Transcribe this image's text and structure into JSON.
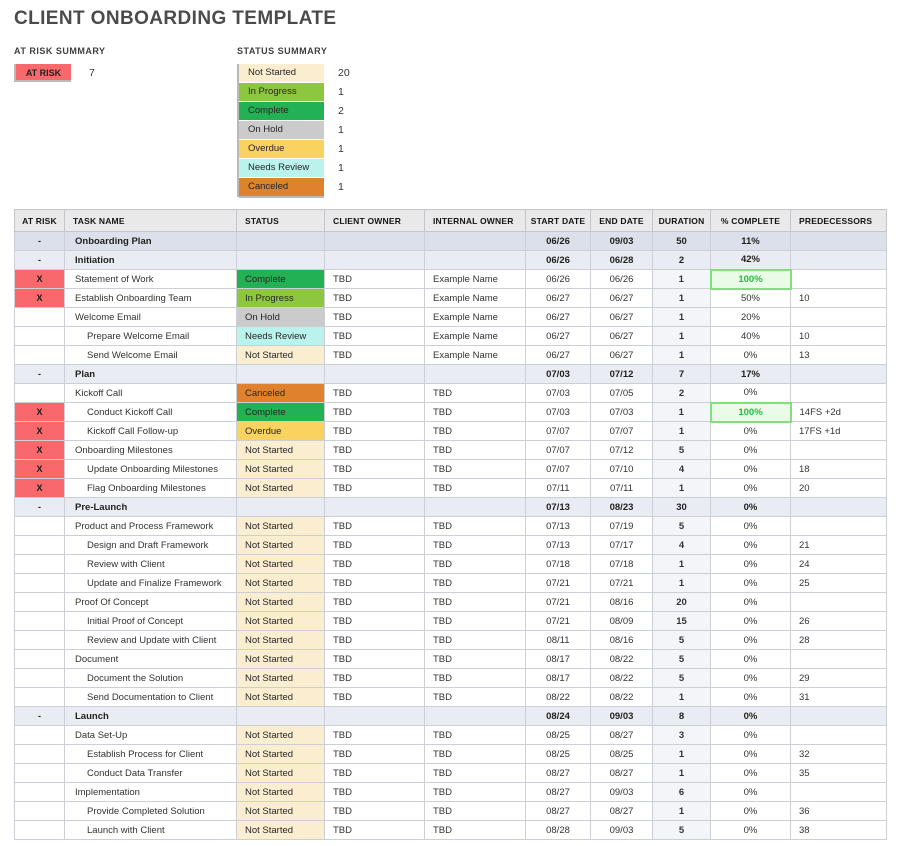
{
  "title": "CLIENT ONBOARDING TEMPLATE",
  "at_risk_summary": {
    "label": "AT RISK SUMMARY",
    "badge": "AT RISK",
    "count": "7",
    "badge_color": "#f9696c"
  },
  "status_summary": {
    "label": "STATUS SUMMARY",
    "items": [
      {
        "label": "Not Started",
        "count": "20",
        "color": "#fbeed0"
      },
      {
        "label": "In Progress",
        "count": "1",
        "color": "#8dc63f"
      },
      {
        "label": "Complete",
        "count": "2",
        "color": "#22b153"
      },
      {
        "label": "On Hold",
        "count": "1",
        "color": "#cbcbcb"
      },
      {
        "label": "Overdue",
        "count": "1",
        "color": "#fad25f"
      },
      {
        "label": "Needs Review",
        "count": "1",
        "color": "#baf3ec"
      },
      {
        "label": "Canceled",
        "count": "1",
        "color": "#e0812d"
      }
    ]
  },
  "status_colors": {
    "Not Started": "#fbeed0",
    "In Progress": "#8dc63f",
    "Complete": "#22b153",
    "On Hold": "#cbcbcb",
    "Overdue": "#fad25f",
    "Needs Review": "#baf3ec",
    "Canceled": "#e0812d"
  },
  "table": {
    "columns": [
      "AT RISK",
      "TASK NAME",
      "STATUS",
      "CLIENT OWNER",
      "INTERNAL OWNER",
      "START DATE",
      "END DATE",
      "DURATION",
      "% COMPLETE",
      "PREDECESSORS"
    ],
    "rows": [
      {
        "level": "section1",
        "at_risk": "-",
        "task": "Onboarding Plan",
        "indent": 0,
        "status": "",
        "client": "",
        "internal": "",
        "start": "06/26",
        "end": "09/03",
        "duration": "50",
        "complete": "11%",
        "complete_hl": false,
        "pred": ""
      },
      {
        "level": "section2",
        "at_risk": "-",
        "task": "Initiation",
        "indent": 0,
        "status": "",
        "client": "",
        "internal": "",
        "start": "06/26",
        "end": "06/28",
        "duration": "2",
        "complete": "42%",
        "complete_hl": false,
        "pred": ""
      },
      {
        "level": "task",
        "at_risk": "X",
        "task": "Statement of Work",
        "indent": 0,
        "status": "Complete",
        "client": "TBD",
        "internal": "Example Name",
        "start": "06/26",
        "end": "06/26",
        "duration": "1",
        "complete": "100%",
        "complete_hl": true,
        "pred": ""
      },
      {
        "level": "task",
        "at_risk": "X",
        "task": "Establish Onboarding Team",
        "indent": 0,
        "status": "In Progress",
        "client": "TBD",
        "internal": "Example Name",
        "start": "06/27",
        "end": "06/27",
        "duration": "1",
        "complete": "50%",
        "complete_hl": false,
        "pred": "10"
      },
      {
        "level": "task",
        "at_risk": "",
        "task": "Welcome Email",
        "indent": 0,
        "status": "On Hold",
        "client": "TBD",
        "internal": "Example Name",
        "start": "06/27",
        "end": "06/27",
        "duration": "1",
        "complete": "20%",
        "complete_hl": false,
        "pred": ""
      },
      {
        "level": "task",
        "at_risk": "",
        "task": "Prepare Welcome Email",
        "indent": 1,
        "status": "Needs Review",
        "client": "TBD",
        "internal": "Example Name",
        "start": "06/27",
        "end": "06/27",
        "duration": "1",
        "complete": "40%",
        "complete_hl": false,
        "pred": "10"
      },
      {
        "level": "task",
        "at_risk": "",
        "task": "Send Welcome Email",
        "indent": 1,
        "status": "Not Started",
        "client": "TBD",
        "internal": "Example Name",
        "start": "06/27",
        "end": "06/27",
        "duration": "1",
        "complete": "0%",
        "complete_hl": false,
        "pred": "13"
      },
      {
        "level": "section2",
        "at_risk": "-",
        "task": "Plan",
        "indent": 0,
        "status": "",
        "client": "",
        "internal": "",
        "start": "07/03",
        "end": "07/12",
        "duration": "7",
        "complete": "17%",
        "complete_hl": false,
        "pred": ""
      },
      {
        "level": "task",
        "at_risk": "",
        "task": "Kickoff Call",
        "indent": 0,
        "status": "Canceled",
        "client": "TBD",
        "internal": "TBD",
        "start": "07/03",
        "end": "07/05",
        "duration": "2",
        "complete": "0%",
        "complete_hl": false,
        "pred": ""
      },
      {
        "level": "task",
        "at_risk": "X",
        "task": "Conduct Kickoff Call",
        "indent": 1,
        "status": "Complete",
        "client": "TBD",
        "internal": "TBD",
        "start": "07/03",
        "end": "07/03",
        "duration": "1",
        "complete": "100%",
        "complete_hl": true,
        "pred": "14FS +2d"
      },
      {
        "level": "task",
        "at_risk": "X",
        "task": "Kickoff Call Follow-up",
        "indent": 1,
        "status": "Overdue",
        "client": "TBD",
        "internal": "TBD",
        "start": "07/07",
        "end": "07/07",
        "duration": "1",
        "complete": "0%",
        "complete_hl": false,
        "pred": "17FS +1d"
      },
      {
        "level": "task",
        "at_risk": "X",
        "task": "Onboarding Milestones",
        "indent": 0,
        "status": "Not Started",
        "client": "TBD",
        "internal": "TBD",
        "start": "07/07",
        "end": "07/12",
        "duration": "5",
        "complete": "0%",
        "complete_hl": false,
        "pred": ""
      },
      {
        "level": "task",
        "at_risk": "X",
        "task": "Update Onboarding Milestones",
        "indent": 1,
        "status": "Not Started",
        "client": "TBD",
        "internal": "TBD",
        "start": "07/07",
        "end": "07/10",
        "duration": "4",
        "complete": "0%",
        "complete_hl": false,
        "pred": "18"
      },
      {
        "level": "task",
        "at_risk": "X",
        "task": "Flag Onboarding Milestones",
        "indent": 1,
        "status": "Not Started",
        "client": "TBD",
        "internal": "TBD",
        "start": "07/11",
        "end": "07/11",
        "duration": "1",
        "complete": "0%",
        "complete_hl": false,
        "pred": "20"
      },
      {
        "level": "section2",
        "at_risk": "-",
        "task": "Pre-Launch",
        "indent": 0,
        "status": "",
        "client": "",
        "internal": "",
        "start": "07/13",
        "end": "08/23",
        "duration": "30",
        "complete": "0%",
        "complete_hl": false,
        "pred": ""
      },
      {
        "level": "task",
        "at_risk": "",
        "task": "Product and Process Framework",
        "indent": 0,
        "status": "Not Started",
        "client": "TBD",
        "internal": "TBD",
        "start": "07/13",
        "end": "07/19",
        "duration": "5",
        "complete": "0%",
        "complete_hl": false,
        "pred": ""
      },
      {
        "level": "task",
        "at_risk": "",
        "task": "Design and Draft Framework",
        "indent": 1,
        "status": "Not Started",
        "client": "TBD",
        "internal": "TBD",
        "start": "07/13",
        "end": "07/17",
        "duration": "4",
        "complete": "0%",
        "complete_hl": false,
        "pred": "21"
      },
      {
        "level": "task",
        "at_risk": "",
        "task": "Review with Client",
        "indent": 1,
        "status": "Not Started",
        "client": "TBD",
        "internal": "TBD",
        "start": "07/18",
        "end": "07/18",
        "duration": "1",
        "complete": "0%",
        "complete_hl": false,
        "pred": "24"
      },
      {
        "level": "task",
        "at_risk": "",
        "task": "Update and Finalize Framework",
        "indent": 1,
        "status": "Not Started",
        "client": "TBD",
        "internal": "TBD",
        "start": "07/21",
        "end": "07/21",
        "duration": "1",
        "complete": "0%",
        "complete_hl": false,
        "pred": "25"
      },
      {
        "level": "task",
        "at_risk": "",
        "task": "Proof Of Concept",
        "indent": 0,
        "status": "Not Started",
        "client": "TBD",
        "internal": "TBD",
        "start": "07/21",
        "end": "08/16",
        "duration": "20",
        "complete": "0%",
        "complete_hl": false,
        "pred": ""
      },
      {
        "level": "task",
        "at_risk": "",
        "task": "Initial Proof of Concept",
        "indent": 1,
        "status": "Not Started",
        "client": "TBD",
        "internal": "TBD",
        "start": "07/21",
        "end": "08/09",
        "duration": "15",
        "complete": "0%",
        "complete_hl": false,
        "pred": "26"
      },
      {
        "level": "task",
        "at_risk": "",
        "task": "Review and Update with Client",
        "indent": 1,
        "status": "Not Started",
        "client": "TBD",
        "internal": "TBD",
        "start": "08/11",
        "end": "08/16",
        "duration": "5",
        "complete": "0%",
        "complete_hl": false,
        "pred": "28"
      },
      {
        "level": "task",
        "at_risk": "",
        "task": "Document",
        "indent": 0,
        "status": "Not Started",
        "client": "TBD",
        "internal": "TBD",
        "start": "08/17",
        "end": "08/22",
        "duration": "5",
        "complete": "0%",
        "complete_hl": false,
        "pred": ""
      },
      {
        "level": "task",
        "at_risk": "",
        "task": "Document the Solution",
        "indent": 1,
        "status": "Not Started",
        "client": "TBD",
        "internal": "TBD",
        "start": "08/17",
        "end": "08/22",
        "duration": "5",
        "complete": "0%",
        "complete_hl": false,
        "pred": "29"
      },
      {
        "level": "task",
        "at_risk": "",
        "task": "Send Documentation to Client",
        "indent": 1,
        "status": "Not Started",
        "client": "TBD",
        "internal": "TBD",
        "start": "08/22",
        "end": "08/22",
        "duration": "1",
        "complete": "0%",
        "complete_hl": false,
        "pred": "31"
      },
      {
        "level": "section2",
        "at_risk": "-",
        "task": "Launch",
        "indent": 0,
        "status": "",
        "client": "",
        "internal": "",
        "start": "08/24",
        "end": "09/03",
        "duration": "8",
        "complete": "0%",
        "complete_hl": false,
        "pred": ""
      },
      {
        "level": "task",
        "at_risk": "",
        "task": "Data Set-Up",
        "indent": 0,
        "status": "Not Started",
        "client": "TBD",
        "internal": "TBD",
        "start": "08/25",
        "end": "08/27",
        "duration": "3",
        "complete": "0%",
        "complete_hl": false,
        "pred": ""
      },
      {
        "level": "task",
        "at_risk": "",
        "task": "Establish Process for Client",
        "indent": 1,
        "status": "Not Started",
        "client": "TBD",
        "internal": "TBD",
        "start": "08/25",
        "end": "08/25",
        "duration": "1",
        "complete": "0%",
        "complete_hl": false,
        "pred": "32"
      },
      {
        "level": "task",
        "at_risk": "",
        "task": "Conduct Data Transfer",
        "indent": 1,
        "status": "Not Started",
        "client": "TBD",
        "internal": "TBD",
        "start": "08/27",
        "end": "08/27",
        "duration": "1",
        "complete": "0%",
        "complete_hl": false,
        "pred": "35"
      },
      {
        "level": "task",
        "at_risk": "",
        "task": "Implementation",
        "indent": 0,
        "status": "Not Started",
        "client": "TBD",
        "internal": "TBD",
        "start": "08/27",
        "end": "09/03",
        "duration": "6",
        "complete": "0%",
        "complete_hl": false,
        "pred": ""
      },
      {
        "level": "task",
        "at_risk": "",
        "task": "Provide Completed Solution",
        "indent": 1,
        "status": "Not Started",
        "client": "TBD",
        "internal": "TBD",
        "start": "08/27",
        "end": "08/27",
        "duration": "1",
        "complete": "0%",
        "complete_hl": false,
        "pred": "36"
      },
      {
        "level": "task",
        "at_risk": "",
        "task": "Launch with Client",
        "indent": 1,
        "status": "Not Started",
        "client": "TBD",
        "internal": "TBD",
        "start": "08/28",
        "end": "09/03",
        "duration": "5",
        "complete": "0%",
        "complete_hl": false,
        "pred": "38"
      }
    ]
  }
}
